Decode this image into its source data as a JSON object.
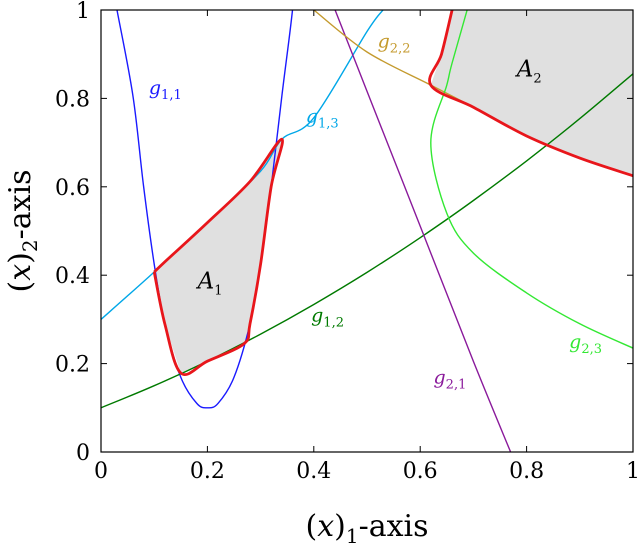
{
  "chart_data": {
    "type": "line",
    "xlabel": "(x)1-axis",
    "ylabel": "(x)2-axis",
    "xlim": [
      0,
      1
    ],
    "ylim": [
      0,
      1
    ],
    "x_ticks": [
      "0",
      "0.2",
      "0.4",
      "0.6",
      "0.8",
      "1"
    ],
    "y_ticks": [
      "0",
      "0.2",
      "0.4",
      "0.6",
      "0.8",
      "1"
    ],
    "grid": false,
    "series": [
      {
        "name": "g1,1",
        "color": "#1a1aff",
        "label_pos": [
          0.09,
          0.81
        ],
        "x": [
          0.03,
          0.06,
          0.08,
          0.1,
          0.12,
          0.15,
          0.18,
          0.2,
          0.22,
          0.25,
          0.28,
          0.3,
          0.32,
          0.34,
          0.36,
          0.37
        ],
        "y": [
          1.0,
          0.806,
          0.601,
          0.425,
          0.29,
          0.169,
          0.11,
          0.1,
          0.11,
          0.169,
          0.29,
          0.425,
          0.601,
          0.806,
          1.0,
          1.14
        ]
      },
      {
        "name": "g1,2",
        "color": "#007a00",
        "label_pos": [
          0.395,
          0.295
        ],
        "x": [
          0,
          0.1,
          0.2,
          0.3,
          0.4,
          0.5,
          0.6,
          0.7,
          0.8,
          0.9,
          1.0
        ],
        "y": [
          0.1,
          0.1499,
          0.2055,
          0.2667,
          0.3337,
          0.4064,
          0.4848,
          0.5689,
          0.6587,
          0.7543,
          0.8556
        ]
      },
      {
        "name": "g1,3",
        "color": "#00a7e8",
        "label_pos": [
          0.385,
          0.745
        ],
        "x": [
          0,
          0.1,
          0.2,
          0.3,
          0.34,
          0.4,
          0.5,
          0.53
        ],
        "y": [
          0.3,
          0.4073,
          0.5191,
          0.6354,
          0.7076,
          0.7561,
          0.9513,
          1.0
        ]
      },
      {
        "name": "g2,1",
        "color": "#8a1a9b",
        "label_pos": [
          0.625,
          0.155
        ],
        "x": [
          0.44,
          0.5,
          0.6,
          0.7,
          0.77
        ],
        "y": [
          1.0,
          0.816,
          0.511,
          0.205,
          0.0
        ]
      },
      {
        "name": "g2,2",
        "color": "#c49a2d",
        "label_pos": [
          0.52,
          0.915
        ],
        "x": [
          0.4,
          0.5,
          0.62,
          0.7,
          0.8,
          0.9,
          1.0
        ],
        "y": [
          1.0,
          0.905,
          0.83,
          0.78,
          0.715,
          0.665,
          0.625
        ]
      },
      {
        "name": "g2,3",
        "color": "#33e833",
        "label_pos": [
          0.88,
          0.235
        ],
        "x": [
          1.0,
          0.9,
          0.8,
          0.7,
          0.65,
          0.62,
          0.65,
          0.66,
          0.7
        ],
        "y": [
          0.235,
          0.29,
          0.36,
          0.45,
          0.54,
          0.7,
          0.83,
          0.88,
          1.05
        ]
      }
    ],
    "regions": [
      {
        "name": "A1",
        "fill": "#e0e0e0",
        "label_pos": [
          0.205,
          0.37
        ],
        "polygon": [
          [
            0.1,
            0.4073
          ],
          [
            0.12,
            0.43
          ],
          [
            0.2,
            0.5191
          ],
          [
            0.28,
            0.612
          ],
          [
            0.34,
            0.7076
          ],
          [
            0.32,
            0.601
          ],
          [
            0.3,
            0.425
          ],
          [
            0.28,
            0.29
          ],
          [
            0.269,
            0.245
          ],
          [
            0.2,
            0.2055
          ],
          [
            0.15,
            0.1787
          ],
          [
            0.12,
            0.29
          ],
          [
            0.1,
            0.4073
          ]
        ]
      },
      {
        "name": "A2",
        "fill": "#e0e0e0",
        "label_pos": [
          0.805,
          0.85
        ],
        "polygon": [
          [
            0.66,
            1.0
          ],
          [
            0.64,
            0.9
          ],
          [
            0.62,
            0.83
          ],
          [
            0.7,
            0.78
          ],
          [
            0.8,
            0.715
          ],
          [
            0.9,
            0.665
          ],
          [
            1.0,
            0.625
          ],
          [
            1.0,
            1.0
          ]
        ]
      }
    ],
    "boundaries": [
      {
        "color": "#e8161b",
        "x": [
          0.1,
          0.12,
          0.2,
          0.28,
          0.34,
          0.32,
          0.3,
          0.28,
          0.269,
          0.2,
          0.15,
          0.12,
          0.1
        ],
        "y": [
          0.4073,
          0.43,
          0.5191,
          0.612,
          0.7076,
          0.601,
          0.425,
          0.29,
          0.245,
          0.2055,
          0.1787,
          0.29,
          0.4073
        ]
      },
      {
        "color": "#e8161b",
        "x": [
          0.66,
          0.64,
          0.62,
          0.7,
          0.8,
          0.9,
          1.0
        ],
        "y": [
          1.0,
          0.9,
          0.83,
          0.78,
          0.715,
          0.665,
          0.625
        ]
      }
    ]
  }
}
